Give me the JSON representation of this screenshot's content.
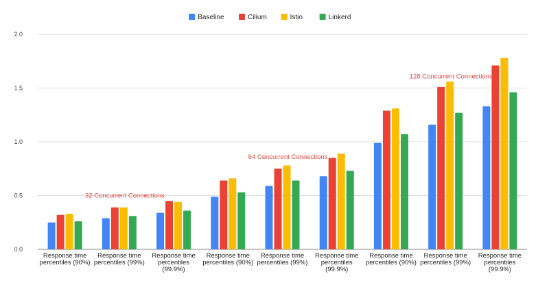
{
  "chart_data": {
    "type": "bar",
    "title": "",
    "xlabel": "",
    "ylabel": "",
    "ylim": [
      0,
      2.0
    ],
    "yticks": [
      "0.0",
      "0.5",
      "1.0",
      "1.5",
      "2.0"
    ],
    "grid": true,
    "legend_position": "top",
    "categories": [
      [
        "Response time",
        "percentiles (90%)"
      ],
      [
        "Response time",
        "percentiles (99%)"
      ],
      [
        "Response time",
        "percentiles",
        "(99.9%)"
      ],
      [
        "Response time",
        "percentiles (90%)"
      ],
      [
        "Response time",
        "percentiles (99%)"
      ],
      [
        "Response time",
        "percentiles",
        "(99.9%)"
      ],
      [
        "Response time",
        "percentiles (90%)"
      ],
      [
        "Response time",
        "percentiles (99%)"
      ],
      [
        "Response time",
        "percentiles",
        "(99.9%)"
      ]
    ],
    "series": [
      {
        "name": "Baseline",
        "color": "#4285f4",
        "values": [
          0.25,
          0.29,
          0.34,
          0.49,
          0.59,
          0.68,
          0.99,
          1.16,
          1.33
        ]
      },
      {
        "name": "Cilium",
        "color": "#ea4335",
        "values": [
          0.32,
          0.39,
          0.45,
          0.64,
          0.75,
          0.85,
          1.29,
          1.51,
          1.71
        ]
      },
      {
        "name": "Istio",
        "color": "#fbbc04",
        "values": [
          0.33,
          0.39,
          0.44,
          0.66,
          0.78,
          0.89,
          1.31,
          1.56,
          1.78
        ]
      },
      {
        "name": "Linkerd",
        "color": "#34a853",
        "values": [
          0.26,
          0.31,
          0.36,
          0.53,
          0.64,
          0.73,
          1.07,
          1.27,
          1.46
        ]
      }
    ],
    "annotations": [
      {
        "text": "32 Concurrent Connections",
        "group": 1,
        "value": 0.48
      },
      {
        "text": "64 Concurrent Connections",
        "group": 4,
        "value": 0.84
      },
      {
        "text": "128 Concurrent Connections",
        "group": 7,
        "value": 1.59
      }
    ]
  }
}
